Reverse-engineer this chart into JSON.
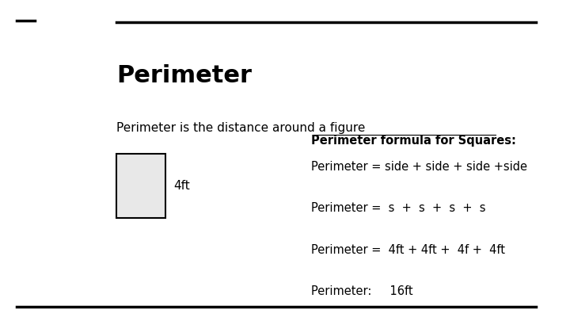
{
  "title": "Perimeter",
  "subtitle": "Perimeter is the distance around a figure",
  "square_label": "4ft",
  "formula_header": "Perimeter formula for Squares:",
  "formula_line1": "Perimeter = side + side + side +side",
  "formula_line2": "Perimeter =  s  +  s  +  s  +  s",
  "formula_line3": "Perimeter =  4ft + 4ft +  4f +  4ft",
  "formula_line4": "Perimeter:     16ft",
  "bg_color": "#ffffff",
  "text_color": "#000000",
  "title_fontsize": 22,
  "body_fontsize": 11,
  "formula_header_fontsize": 10.5,
  "formula_body_fontsize": 10.5
}
